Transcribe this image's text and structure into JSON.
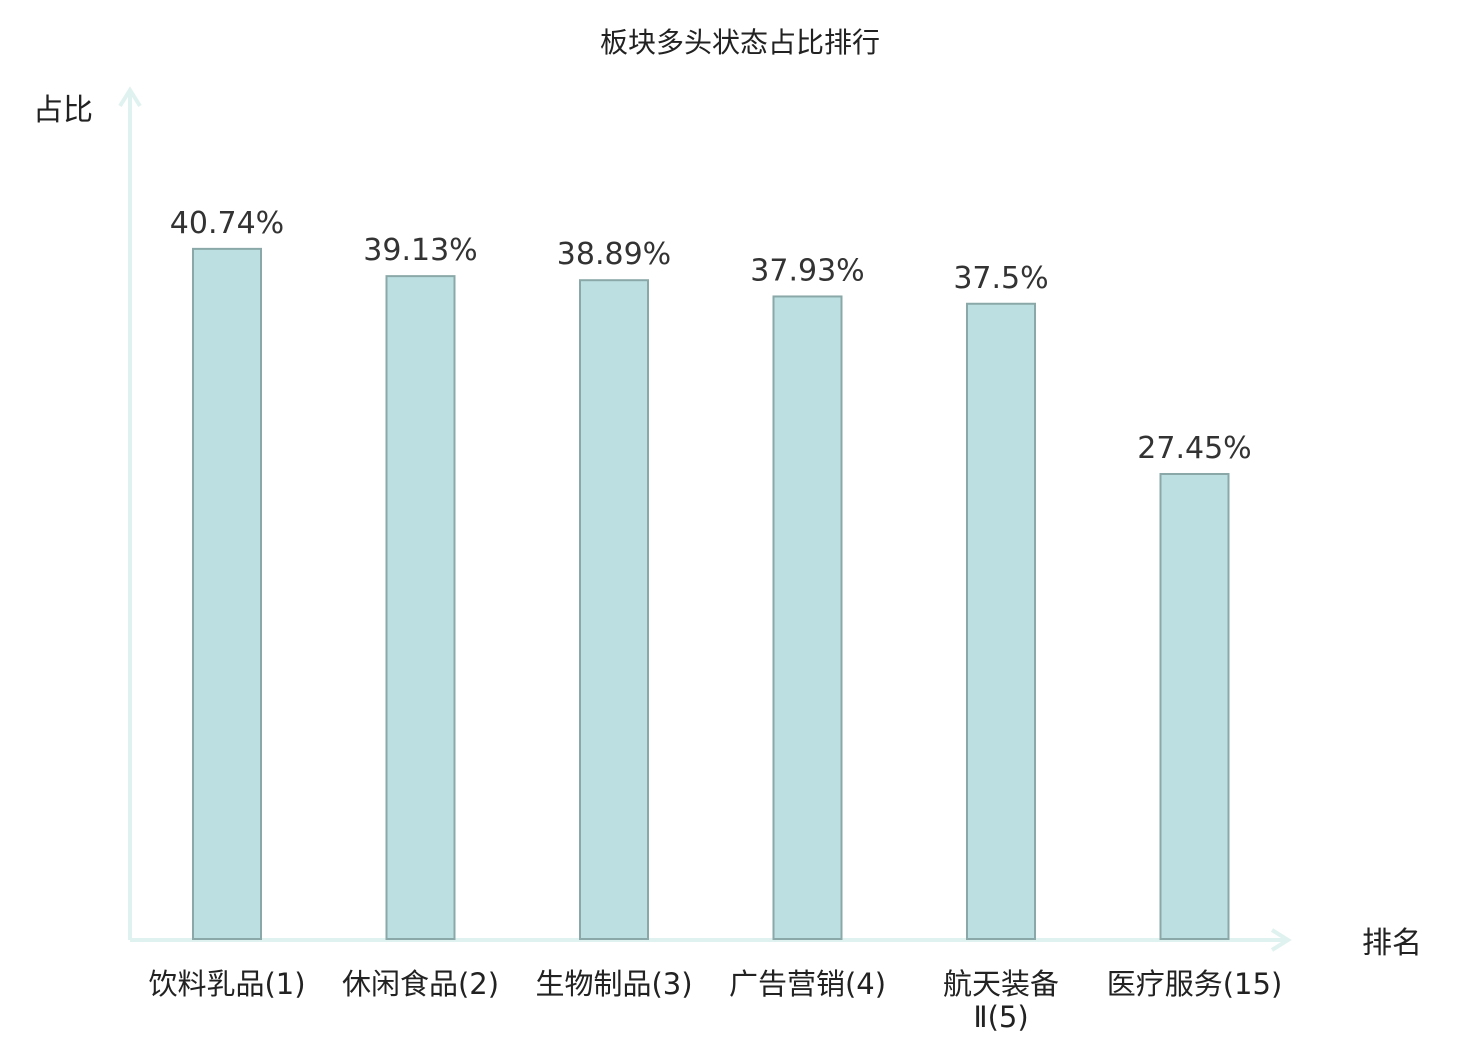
{
  "chart_data": {
    "type": "bar",
    "title": "板块多头状态占比排行",
    "xlabel": "排名",
    "ylabel": "占比",
    "categories": [
      [
        "饮料乳品(1)"
      ],
      [
        "休闲食品(2)"
      ],
      [
        "生物制品(3)"
      ],
      [
        "广告营销(4)"
      ],
      [
        "航天装备",
        "Ⅱ(5)"
      ],
      [
        "医疗服务(15)"
      ]
    ],
    "values": [
      40.74,
      39.13,
      38.89,
      37.93,
      37.5,
      27.45
    ],
    "value_labels": [
      "40.74%",
      "39.13%",
      "38.89%",
      "37.93%",
      "37.5%",
      "27.45%"
    ],
    "highlight_index": 5,
    "ylim": [
      0,
      50
    ],
    "grid": false,
    "colors": {
      "bar_fill": "#bce0e2",
      "bar_stroke": "#8aa8a8",
      "axis": "#e0f2ef",
      "highlight_text": "#e02020",
      "text": "#222222"
    }
  }
}
